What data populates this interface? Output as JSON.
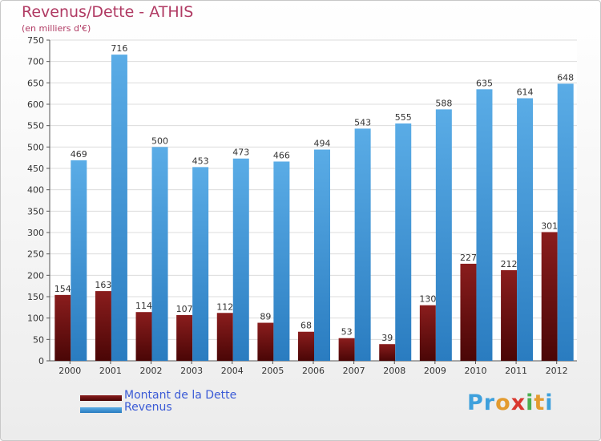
{
  "title": "Revenus/Dette - ATHIS",
  "subtitle": "(en milliers d'€)",
  "logo": {
    "text": "Proxiti",
    "letters": [
      {
        "ch": "P",
        "color": "#3ea0dc"
      },
      {
        "ch": "r",
        "color": "#3ea0dc"
      },
      {
        "ch": "o",
        "color": "#e39b2f"
      },
      {
        "ch": "x",
        "color": "#d9372f"
      },
      {
        "ch": "i",
        "color": "#4caf50"
      },
      {
        "ch": "t",
        "color": "#e39b2f"
      },
      {
        "ch": "i",
        "color": "#3ea0dc"
      }
    ]
  },
  "chart_data": {
    "type": "bar",
    "title": "Revenus/Dette - ATHIS",
    "subtitle": "(en milliers d'€)",
    "categories": [
      "2000",
      "2001",
      "2002",
      "2003",
      "2004",
      "2005",
      "2006",
      "2007",
      "2008",
      "2009",
      "2010",
      "2011",
      "2012"
    ],
    "series": [
      {
        "name": "Montant de la Dette",
        "color": "#8a1d1d",
        "colorDark": "#4a0606",
        "values": [
          154,
          163,
          114,
          107,
          112,
          89,
          68,
          53,
          39,
          130,
          227,
          212,
          301
        ]
      },
      {
        "name": "Revenus",
        "color": "#5aace6",
        "colorDark": "#2a7cc0",
        "values": [
          469,
          716,
          500,
          453,
          473,
          466,
          494,
          543,
          555,
          588,
          635,
          614,
          648
        ]
      }
    ],
    "ylim": [
      0,
      750
    ],
    "yticks": [
      0,
      50,
      100,
      150,
      200,
      250,
      300,
      350,
      400,
      450,
      500,
      550,
      600,
      650,
      700,
      750
    ],
    "grid": true,
    "legend_position": "bottom-left"
  }
}
